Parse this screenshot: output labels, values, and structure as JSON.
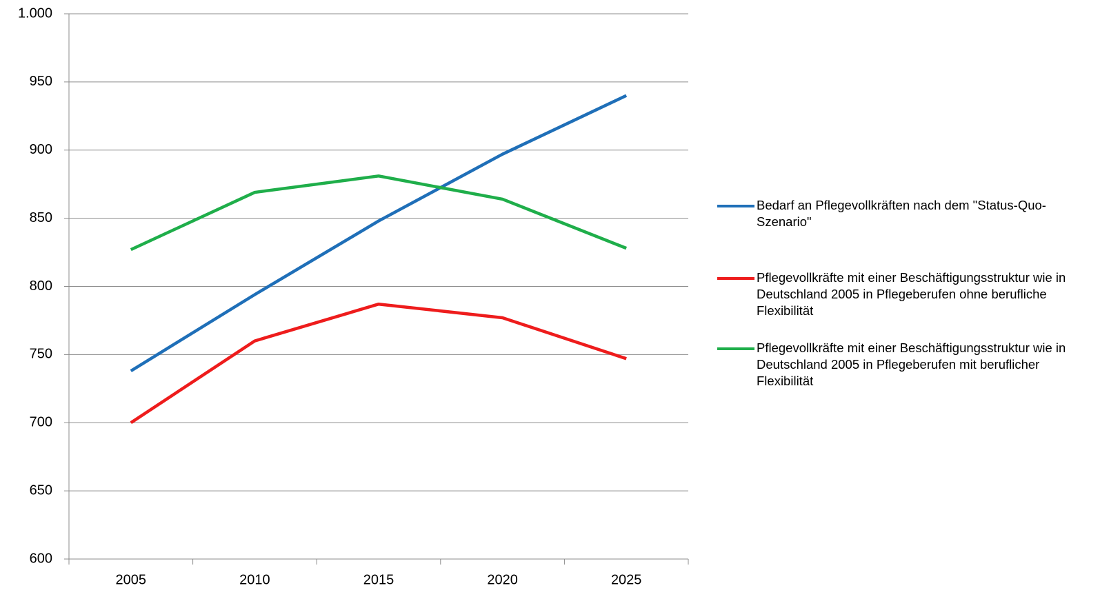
{
  "chart_data": {
    "type": "line",
    "categories": [
      "2005",
      "2010",
      "2015",
      "2020",
      "2025"
    ],
    "series": [
      {
        "name": "Bedarf an Pflegevollkräften nach dem \"Status-Quo-Szenario\"",
        "color": "#1f6fb8",
        "values": [
          738,
          794,
          848,
          897,
          940
        ]
      },
      {
        "name": "Pflegevollkräfte mit einer Beschäftigungsstruktur wie in Deutschland 2005 in Pflegeberufen ohne berufliche Flexibilität",
        "color": "#ee1c1c",
        "values": [
          700,
          760,
          787,
          777,
          747
        ]
      },
      {
        "name": "Pflegevollkräfte mit einer Beschäftigungsstruktur wie in Deutschland 2005 in Pflegeberufen mit beruflicher Flexibilität",
        "color": "#1fae4a",
        "values": [
          827,
          869,
          881,
          864,
          828
        ]
      }
    ],
    "ylim": [
      600,
      1000
    ],
    "yticks": [
      600,
      650,
      700,
      750,
      800,
      850,
      900,
      950,
      {
        "value": 1000,
        "label": "1.000"
      }
    ],
    "grid": true,
    "legend": "right"
  }
}
